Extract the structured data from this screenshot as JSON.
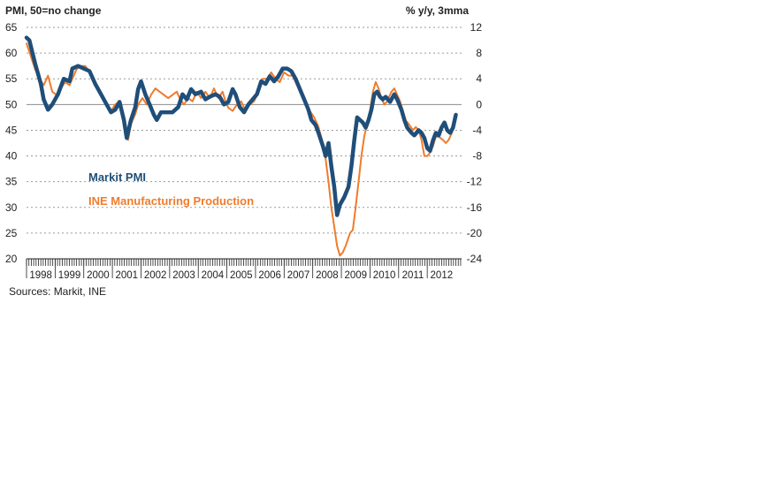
{
  "chart_data": {
    "type": "line",
    "left_axis_title": "PMI, 50=no change",
    "right_axis_title": "% y/y, 3mma",
    "left_ticks": [
      "65",
      "60",
      "55",
      "50",
      "45",
      "40",
      "35",
      "30",
      "25",
      "20"
    ],
    "right_ticks": [
      "12",
      "8",
      "4",
      "0",
      "-4",
      "-8",
      "-12",
      "-16",
      "-20",
      "-24"
    ],
    "ylim_left": [
      20,
      65
    ],
    "ylim_right": [
      -24,
      12
    ],
    "x_range": [
      1998.0,
      2013.2
    ],
    "years": [
      "1998",
      "1999",
      "2000",
      "2001",
      "2002",
      "2003",
      "2004",
      "2005",
      "2006",
      "2007",
      "2008",
      "2009",
      "2010",
      "2011",
      "2012"
    ],
    "reference_line_pmi": 50,
    "grid": "horizontal dotted",
    "source": "Sources: Markit, INE",
    "series": [
      {
        "name": "Markit PMI",
        "axis": "left",
        "color": "#1f4e79",
        "points": [
          [
            1998.0,
            63
          ],
          [
            1998.1,
            62.5
          ],
          [
            1998.3,
            58
          ],
          [
            1998.5,
            54
          ],
          [
            1998.6,
            51
          ],
          [
            1998.75,
            49
          ],
          [
            1998.9,
            50
          ],
          [
            1999.1,
            52
          ],
          [
            1999.3,
            55
          ],
          [
            1999.5,
            54.5
          ],
          [
            1999.6,
            57
          ],
          [
            1999.8,
            57.5
          ],
          [
            2000.0,
            57
          ],
          [
            2000.2,
            56.5
          ],
          [
            2000.4,
            54
          ],
          [
            2000.6,
            52
          ],
          [
            2000.8,
            50
          ],
          [
            2000.95,
            48.5
          ],
          [
            2001.1,
            49
          ],
          [
            2001.25,
            50.5
          ],
          [
            2001.4,
            47
          ],
          [
            2001.5,
            43.5
          ],
          [
            2001.65,
            47
          ],
          [
            2001.8,
            49.5
          ],
          [
            2001.9,
            53
          ],
          [
            2002.0,
            54.5
          ],
          [
            2002.15,
            52
          ],
          [
            2002.3,
            50
          ],
          [
            2002.45,
            48
          ],
          [
            2002.55,
            47
          ],
          [
            2002.7,
            48.5
          ],
          [
            2002.9,
            48.5
          ],
          [
            2003.1,
            48.5
          ],
          [
            2003.3,
            49.5
          ],
          [
            2003.45,
            52
          ],
          [
            2003.6,
            51
          ],
          [
            2003.75,
            53
          ],
          [
            2003.9,
            52
          ],
          [
            2004.1,
            52.5
          ],
          [
            2004.25,
            51
          ],
          [
            2004.4,
            51.5
          ],
          [
            2004.6,
            52
          ],
          [
            2004.75,
            51.5
          ],
          [
            2004.9,
            50
          ],
          [
            2005.05,
            50.5
          ],
          [
            2005.2,
            53
          ],
          [
            2005.3,
            52
          ],
          [
            2005.45,
            49.5
          ],
          [
            2005.6,
            48.5
          ],
          [
            2005.75,
            50
          ],
          [
            2005.9,
            51
          ],
          [
            2006.05,
            52
          ],
          [
            2006.2,
            54.5
          ],
          [
            2006.35,
            54
          ],
          [
            2006.5,
            55.5
          ],
          [
            2006.65,
            54.5
          ],
          [
            2006.8,
            55.5
          ],
          [
            2006.95,
            57
          ],
          [
            2007.1,
            57
          ],
          [
            2007.25,
            56.5
          ],
          [
            2007.4,
            55
          ],
          [
            2007.55,
            53
          ],
          [
            2007.7,
            51
          ],
          [
            2007.85,
            49
          ],
          [
            2007.95,
            47
          ],
          [
            2008.1,
            46
          ],
          [
            2008.2,
            44.5
          ],
          [
            2008.35,
            42
          ],
          [
            2008.45,
            40
          ],
          [
            2008.55,
            42.5
          ],
          [
            2008.65,
            38
          ],
          [
            2008.75,
            34
          ],
          [
            2008.85,
            28.5
          ],
          [
            2008.95,
            30.5
          ],
          [
            2009.1,
            32
          ],
          [
            2009.25,
            34
          ],
          [
            2009.35,
            38
          ],
          [
            2009.45,
            43
          ],
          [
            2009.55,
            47.5
          ],
          [
            2009.65,
            47
          ],
          [
            2009.75,
            46.5
          ],
          [
            2009.85,
            45.5
          ],
          [
            2009.95,
            47
          ],
          [
            2010.05,
            49
          ],
          [
            2010.15,
            52
          ],
          [
            2010.25,
            52.5
          ],
          [
            2010.35,
            51.5
          ],
          [
            2010.45,
            51
          ],
          [
            2010.55,
            51.5
          ],
          [
            2010.7,
            50.5
          ],
          [
            2010.85,
            52
          ],
          [
            2010.95,
            51
          ],
          [
            2011.1,
            49
          ],
          [
            2011.2,
            47
          ],
          [
            2011.3,
            45.5
          ],
          [
            2011.45,
            44.5
          ],
          [
            2011.55,
            44
          ],
          [
            2011.7,
            45
          ],
          [
            2011.8,
            44.5
          ],
          [
            2011.9,
            43.5
          ],
          [
            2012.0,
            41.5
          ],
          [
            2012.1,
            41
          ],
          [
            2012.2,
            43
          ],
          [
            2012.3,
            44.5
          ],
          [
            2012.4,
            44
          ],
          [
            2012.5,
            45.5
          ],
          [
            2012.6,
            46.5
          ],
          [
            2012.7,
            45
          ],
          [
            2012.8,
            44.5
          ],
          [
            2012.9,
            45.5
          ],
          [
            2013.0,
            48
          ]
        ]
      },
      {
        "name": "INE Manufacturing Production",
        "axis": "right",
        "color": "#f07b2b",
        "points": [
          [
            1998.0,
            9.5
          ],
          [
            1998.15,
            7.5
          ],
          [
            1998.3,
            5.5
          ],
          [
            1998.45,
            4
          ],
          [
            1998.6,
            3
          ],
          [
            1998.75,
            4.5
          ],
          [
            1998.9,
            2
          ],
          [
            1999.05,
            1.5
          ],
          [
            1999.2,
            2.5
          ],
          [
            1999.35,
            3.5
          ],
          [
            1999.5,
            3
          ],
          [
            1999.6,
            4
          ],
          [
            1999.75,
            5.5
          ],
          [
            1999.9,
            6
          ],
          [
            2000.05,
            6
          ],
          [
            2000.2,
            5
          ],
          [
            2000.35,
            3.5
          ],
          [
            2000.5,
            2.5
          ],
          [
            2000.65,
            1.5
          ],
          [
            2000.8,
            0
          ],
          [
            2000.95,
            -1
          ],
          [
            2001.1,
            0
          ],
          [
            2001.25,
            0.5
          ],
          [
            2001.35,
            -1
          ],
          [
            2001.45,
            -4
          ],
          [
            2001.55,
            -5.5
          ],
          [
            2001.65,
            -3
          ],
          [
            2001.8,
            -1.5
          ],
          [
            2001.9,
            0
          ],
          [
            2002.05,
            1
          ],
          [
            2002.2,
            0
          ],
          [
            2002.35,
            1.5
          ],
          [
            2002.5,
            2.5
          ],
          [
            2002.65,
            2
          ],
          [
            2002.8,
            1.5
          ],
          [
            2002.95,
            1
          ],
          [
            2003.1,
            1.5
          ],
          [
            2003.25,
            2
          ],
          [
            2003.35,
            1
          ],
          [
            2003.5,
            0
          ],
          [
            2003.65,
            1
          ],
          [
            2003.8,
            0.5
          ],
          [
            2003.95,
            2
          ],
          [
            2004.1,
            1
          ],
          [
            2004.25,
            2
          ],
          [
            2004.4,
            1
          ],
          [
            2004.55,
            2.5
          ],
          [
            2004.7,
            1
          ],
          [
            2004.85,
            2
          ],
          [
            2004.95,
            0.5
          ],
          [
            2005.05,
            -0.5
          ],
          [
            2005.2,
            -1
          ],
          [
            2005.35,
            0
          ],
          [
            2005.5,
            0.5
          ],
          [
            2005.65,
            -1
          ],
          [
            2005.8,
            0
          ],
          [
            2005.95,
            0.5
          ],
          [
            2006.1,
            2
          ],
          [
            2006.25,
            4
          ],
          [
            2006.4,
            4
          ],
          [
            2006.55,
            5
          ],
          [
            2006.7,
            4
          ],
          [
            2006.85,
            3.5
          ],
          [
            2007.0,
            5
          ],
          [
            2007.15,
            4.5
          ],
          [
            2007.3,
            4.5
          ],
          [
            2007.45,
            3
          ],
          [
            2007.6,
            2
          ],
          [
            2007.75,
            0
          ],
          [
            2007.9,
            -1
          ],
          [
            2008.05,
            -2
          ],
          [
            2008.2,
            -3.5
          ],
          [
            2008.35,
            -6
          ],
          [
            2008.45,
            -8.5
          ],
          [
            2008.55,
            -12
          ],
          [
            2008.65,
            -16
          ],
          [
            2008.75,
            -19
          ],
          [
            2008.85,
            -22
          ],
          [
            2008.95,
            -23.5
          ],
          [
            2009.05,
            -23
          ],
          [
            2009.15,
            -22
          ],
          [
            2009.3,
            -20
          ],
          [
            2009.4,
            -19.5
          ],
          [
            2009.5,
            -16
          ],
          [
            2009.6,
            -12
          ],
          [
            2009.7,
            -8
          ],
          [
            2009.8,
            -5
          ],
          [
            2009.9,
            -3
          ],
          [
            2010.0,
            -1
          ],
          [
            2010.1,
            2
          ],
          [
            2010.2,
            3.5
          ],
          [
            2010.3,
            2.5
          ],
          [
            2010.4,
            1
          ],
          [
            2010.5,
            0
          ],
          [
            2010.6,
            0.5
          ],
          [
            2010.75,
            2
          ],
          [
            2010.85,
            2.5
          ],
          [
            2010.95,
            1.5
          ],
          [
            2011.05,
            0.5
          ],
          [
            2011.15,
            -1
          ],
          [
            2011.25,
            -2.5
          ],
          [
            2011.35,
            -3
          ],
          [
            2011.5,
            -4
          ],
          [
            2011.6,
            -3.5
          ],
          [
            2011.7,
            -4
          ],
          [
            2011.8,
            -5.5
          ],
          [
            2011.9,
            -8
          ],
          [
            2012.0,
            -8
          ],
          [
            2012.1,
            -7.5
          ],
          [
            2012.2,
            -6.5
          ],
          [
            2012.3,
            -5
          ],
          [
            2012.4,
            -5
          ],
          [
            2012.55,
            -5.5
          ],
          [
            2012.65,
            -6
          ],
          [
            2012.75,
            -5.5
          ],
          [
            2012.85,
            -4.5
          ],
          [
            2012.95,
            -3
          ]
        ]
      }
    ]
  }
}
